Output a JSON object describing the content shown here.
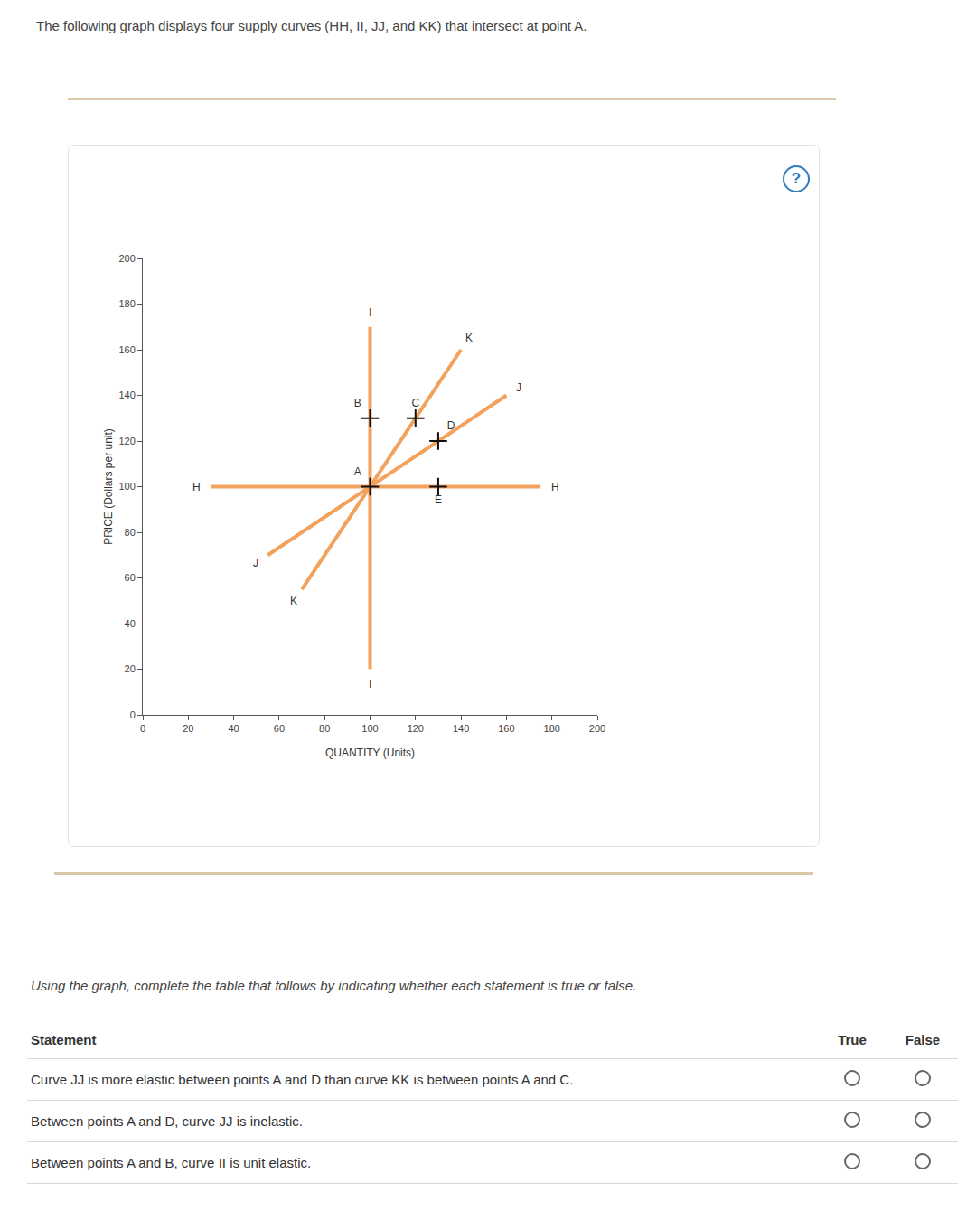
{
  "intro": "The following graph displays four supply curves (HH, II, JJ, and KK) that intersect at point A.",
  "help_icon": "?",
  "chart_data": {
    "type": "line",
    "x_label": "QUANTITY (Units)",
    "y_label": "PRICE (Dollars per unit)",
    "xlim": [
      0,
      200
    ],
    "ylim": [
      0,
      200
    ],
    "xticks": [
      0,
      20,
      40,
      60,
      80,
      100,
      120,
      140,
      160,
      180,
      200
    ],
    "yticks": [
      0,
      20,
      40,
      60,
      80,
      100,
      120,
      140,
      160,
      180,
      200
    ],
    "grid": false,
    "color": "#f2a25c",
    "series": [
      {
        "label": "H",
        "x": [
          30,
          175
        ],
        "y": [
          100,
          100
        ]
      },
      {
        "label": "I",
        "x": [
          100,
          100
        ],
        "y": [
          20,
          170
        ]
      },
      {
        "label": "J",
        "x": [
          55,
          160
        ],
        "y": [
          70,
          140
        ]
      },
      {
        "label": "K",
        "x": [
          70,
          140
        ],
        "y": [
          55,
          160
        ]
      }
    ],
    "points": [
      {
        "label": "A",
        "x": 100,
        "y": 100
      },
      {
        "label": "B",
        "x": 100,
        "y": 130
      },
      {
        "label": "C",
        "x": 120,
        "y": 130
      },
      {
        "label": "D",
        "x": 130,
        "y": 120
      },
      {
        "label": "E",
        "x": 130,
        "y": 100
      }
    ],
    "marker": "cross"
  },
  "instruction": "Using the graph, complete the table that follows by indicating whether each statement is true or false.",
  "table": {
    "header": [
      "Statement",
      "True",
      "False"
    ],
    "rows": [
      "Curve JJ is more elastic between points A and D than curve KK is between points A and C.",
      "Between points A and D, curve JJ is inelastic.",
      "Between points A and B, curve II is unit elastic."
    ]
  }
}
